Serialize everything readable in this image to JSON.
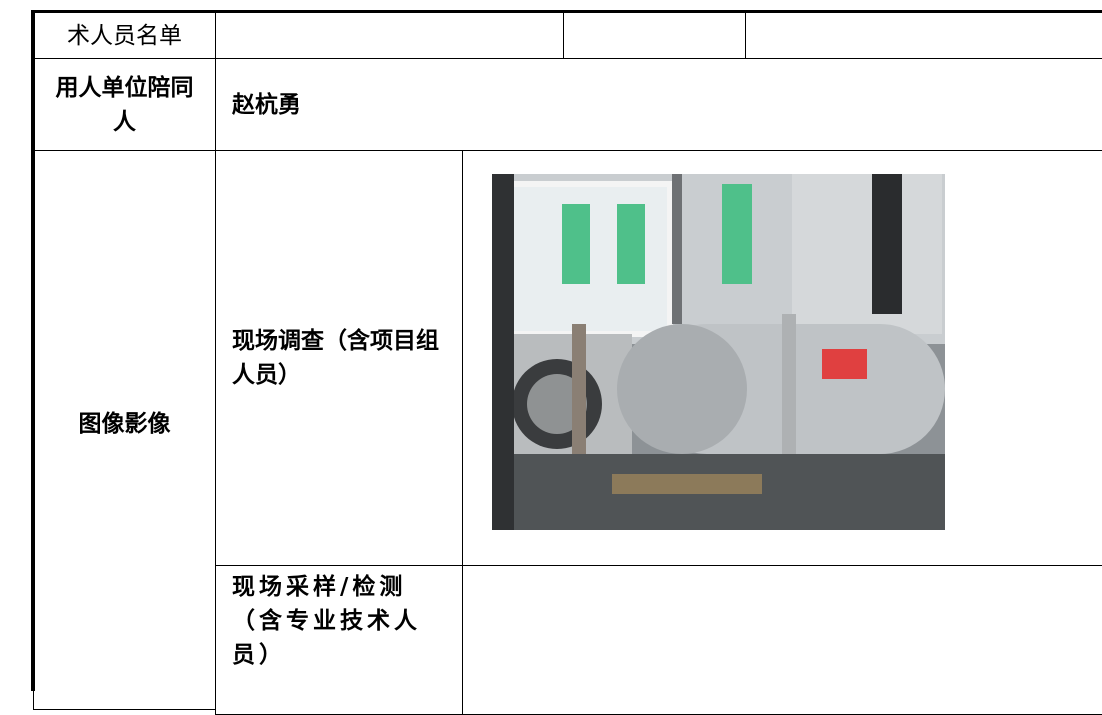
{
  "table": {
    "rows": [
      [
        "术人员名单"
      ],
      [
        "用人单位陪同人",
        "赵杭勇"
      ],
      [
        "图像影像",
        "现场调查（含项目组人员）"
      ],
      [
        "现场采样/检测（含专业技术人员）"
      ]
    ]
  }
}
